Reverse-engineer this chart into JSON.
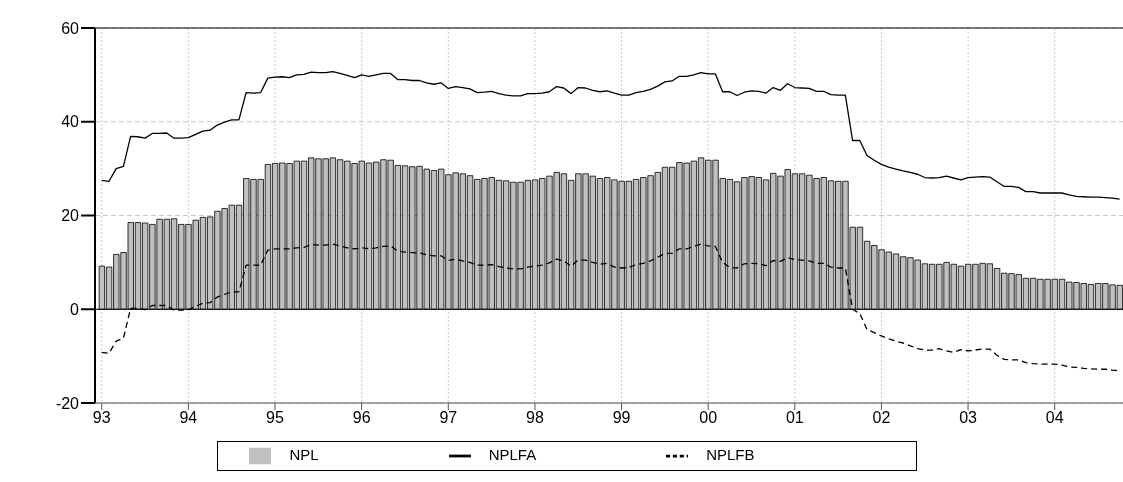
{
  "chart_data": {
    "type": "bar",
    "x": [
      "1993-01",
      "1993-02",
      "1993-03",
      "1993-04",
      "1993-05",
      "1993-06",
      "1993-07",
      "1993-08",
      "1993-09",
      "1993-10",
      "1993-11",
      "1993-12",
      "1994-01",
      "1994-02",
      "1994-03",
      "1994-04",
      "1994-05",
      "1994-06",
      "1994-07",
      "1994-08",
      "1994-09",
      "1994-10",
      "1994-11",
      "1994-12",
      "1995-01",
      "1995-02",
      "1995-03",
      "1995-04",
      "1995-05",
      "1995-06",
      "1995-07",
      "1995-08",
      "1995-09",
      "1995-10",
      "1995-11",
      "1995-12",
      "1996-01",
      "1996-02",
      "1996-03",
      "1996-04",
      "1996-05",
      "1996-06",
      "1996-07",
      "1996-08",
      "1996-09",
      "1996-10",
      "1996-11",
      "1996-12",
      "1997-01",
      "1997-02",
      "1997-03",
      "1997-04",
      "1997-05",
      "1997-06",
      "1997-07",
      "1997-08",
      "1997-09",
      "1997-10",
      "1997-11",
      "1997-12",
      "1998-01",
      "1998-02",
      "1998-03",
      "1998-04",
      "1998-05",
      "1998-06",
      "1998-07",
      "1998-08",
      "1998-09",
      "1998-10",
      "1998-11",
      "1998-12",
      "1999-01",
      "1999-02",
      "1999-03",
      "1999-04",
      "1999-05",
      "1999-06",
      "1999-07",
      "1999-08",
      "1999-09",
      "1999-10",
      "1999-11",
      "1999-12",
      "2000-01",
      "2000-02",
      "2000-03",
      "2000-04",
      "2000-05",
      "2000-06",
      "2000-07",
      "2000-08",
      "2000-09",
      "2000-10",
      "2000-11",
      "2000-12",
      "2001-01",
      "2001-02",
      "2001-03",
      "2001-04",
      "2001-05",
      "2001-06",
      "2001-07",
      "2001-08",
      "2001-09",
      "2001-10",
      "2001-11",
      "2001-12",
      "2002-01",
      "2002-02",
      "2002-03",
      "2002-04",
      "2002-05",
      "2002-06",
      "2002-07",
      "2002-08",
      "2002-09",
      "2002-10",
      "2002-11",
      "2002-12",
      "2003-01",
      "2003-02",
      "2003-03",
      "2003-04",
      "2003-05",
      "2003-06",
      "2003-07",
      "2003-08",
      "2003-09",
      "2003-10",
      "2003-11",
      "2003-12",
      "2004-01",
      "2004-02",
      "2004-03",
      "2004-04",
      "2004-05",
      "2004-06",
      "2004-07",
      "2004-08",
      "2004-09",
      "2004-10"
    ],
    "series": [
      {
        "name": "NPL",
        "color": "#c0c0c0",
        "values": [
          9.2,
          9.0,
          11.7,
          12.1,
          18.5,
          18.5,
          18.4,
          18.1,
          19.2,
          19.2,
          19.3,
          18.1,
          18.1,
          19.0,
          19.6,
          19.7,
          20.9,
          21.5,
          22.2,
          22.2,
          27.9,
          27.7,
          27.7,
          30.9,
          31.1,
          31.2,
          31.1,
          31.6,
          31.6,
          32.3,
          32.1,
          32.1,
          32.3,
          31.9,
          31.6,
          31.1,
          31.6,
          31.2,
          31.4,
          31.9,
          31.8,
          30.7,
          30.6,
          30.4,
          30.5,
          29.9,
          29.6,
          29.9,
          28.7,
          29.1,
          28.9,
          28.5,
          27.7,
          27.9,
          28.1,
          27.5,
          27.4,
          27.1,
          27.1,
          27.5,
          27.6,
          27.9,
          28.4,
          29.2,
          28.9,
          27.5,
          28.9,
          28.9,
          28.4,
          27.9,
          28.1,
          27.6,
          27.3,
          27.3,
          27.7,
          28.1,
          28.5,
          29.2,
          30.3,
          30.3,
          31.3,
          31.2,
          31.6,
          32.3,
          31.8,
          31.8,
          27.9,
          27.7,
          27.2,
          28.1,
          28.3,
          28.1,
          27.6,
          29.0,
          28.4,
          29.8,
          28.9,
          28.9,
          28.6,
          27.9,
          28.1,
          27.4,
          27.3,
          27.3,
          17.5,
          17.5,
          14.5,
          13.6,
          12.7,
          12.2,
          11.8,
          11.2,
          11.0,
          10.5,
          9.7,
          9.6,
          9.6,
          10.0,
          9.6,
          9.2,
          9.6,
          9.6,
          9.8,
          9.7,
          8.7,
          7.7,
          7.6,
          7.4,
          6.6,
          6.6,
          6.4,
          6.4,
          6.4,
          6.4,
          5.8,
          5.7,
          5.5,
          5.3,
          5.5,
          5.5,
          5.2,
          5.1
        ]
      },
      {
        "name": "NPLFA",
        "type": "line",
        "color": "#000000",
        "line_style": "solid",
        "values": [
          27.5,
          27.3,
          30.0,
          30.5,
          36.9,
          36.8,
          36.5,
          37.5,
          37.5,
          37.6,
          36.5,
          36.5,
          36.6,
          37.3,
          38.0,
          38.2,
          39.3,
          39.9,
          40.4,
          40.4,
          46.2,
          46.1,
          46.2,
          49.3,
          49.5,
          49.6,
          49.4,
          50.0,
          50.1,
          50.6,
          50.5,
          50.5,
          50.7,
          50.3,
          49.9,
          49.4,
          50.0,
          49.7,
          50.0,
          50.3,
          50.3,
          49.0,
          49.0,
          48.8,
          48.8,
          48.3,
          48.0,
          48.3,
          47.1,
          47.5,
          47.3,
          47.0,
          46.2,
          46.3,
          46.5,
          46.0,
          45.7,
          45.5,
          45.5,
          46.0,
          46.0,
          46.1,
          46.4,
          47.5,
          47.2,
          46.0,
          47.3,
          47.2,
          46.7,
          46.4,
          46.6,
          46.1,
          45.7,
          45.7,
          46.2,
          46.5,
          46.9,
          47.6,
          48.5,
          48.7,
          49.7,
          49.7,
          50.0,
          50.5,
          50.2,
          50.2,
          46.4,
          46.4,
          45.6,
          46.3,
          46.6,
          46.5,
          46.1,
          47.3,
          46.7,
          48.1,
          47.3,
          47.2,
          47.1,
          46.5,
          46.5,
          45.8,
          45.7,
          45.7,
          36.0,
          36.0,
          32.8,
          31.8,
          30.9,
          30.3,
          29.9,
          29.5,
          29.2,
          28.8,
          28.1,
          28.0,
          28.1,
          28.4,
          28.0,
          27.6,
          28.1,
          28.2,
          28.3,
          28.2,
          27.2,
          26.2,
          26.2,
          26.0,
          25.1,
          25.1,
          24.8,
          24.8,
          24.8,
          24.8,
          24.4,
          24.1,
          24.0,
          23.9,
          23.9,
          23.8,
          23.7,
          23.5
        ]
      },
      {
        "name": "NPLFB",
        "type": "line",
        "color": "#000000",
        "line_style": "dashed",
        "values": [
          -9.2,
          -9.4,
          -6.8,
          -6.2,
          0.2,
          0.2,
          -0.1,
          0.8,
          0.8,
          0.8,
          -0.2,
          -0.2,
          -0.1,
          0.6,
          1.3,
          1.4,
          2.6,
          3.2,
          3.7,
          3.7,
          9.4,
          9.4,
          9.4,
          12.6,
          12.9,
          12.9,
          12.9,
          13.1,
          13.2,
          13.8,
          13.7,
          13.7,
          13.9,
          13.5,
          13.1,
          12.9,
          13.1,
          12.9,
          13.1,
          13.4,
          13.5,
          12.4,
          12.2,
          12.1,
          12.0,
          11.6,
          11.4,
          11.4,
          10.4,
          10.7,
          10.3,
          10.0,
          9.4,
          9.4,
          9.5,
          9.1,
          8.8,
          8.6,
          8.6,
          9.0,
          9.2,
          9.4,
          9.9,
          10.7,
          10.3,
          9.2,
          10.5,
          10.5,
          10.0,
          9.6,
          9.8,
          9.0,
          8.8,
          8.9,
          9.5,
          9.8,
          10.3,
          11.1,
          11.9,
          11.9,
          12.9,
          12.9,
          13.4,
          13.9,
          13.5,
          13.4,
          10.0,
          8.9,
          8.8,
          9.7,
          9.8,
          9.7,
          9.3,
          10.4,
          10.2,
          11.0,
          10.6,
          10.5,
          10.3,
          9.8,
          9.8,
          9.0,
          8.8,
          8.8,
          0.0,
          -0.9,
          -4.3,
          -5.0,
          -5.7,
          -6.3,
          -6.8,
          -7.2,
          -7.8,
          -8.4,
          -8.7,
          -8.7,
          -8.4,
          -8.9,
          -9.2,
          -8.6,
          -8.9,
          -8.7,
          -8.5,
          -8.5,
          -9.8,
          -10.7,
          -10.8,
          -10.8,
          -11.4,
          -11.6,
          -11.7,
          -11.7,
          -11.7,
          -11.9,
          -12.3,
          -12.4,
          -12.6,
          -12.7,
          -12.8,
          -12.8,
          -13.0,
          -13.1
        ]
      }
    ],
    "xlim": [
      "1992-12-03",
      "2004-10-15"
    ],
    "xticks": [
      {
        "value": "1993-01",
        "label": "93"
      },
      {
        "value": "1994-01",
        "label": "94"
      },
      {
        "value": "1995-01",
        "label": "95"
      },
      {
        "value": "1996-01",
        "label": "96"
      },
      {
        "value": "1997-01",
        "label": "97"
      },
      {
        "value": "1998-01",
        "label": "98"
      },
      {
        "value": "1999-01",
        "label": "99"
      },
      {
        "value": "2000-01",
        "label": "00"
      },
      {
        "value": "2001-01",
        "label": "01"
      },
      {
        "value": "2002-01",
        "label": "02"
      },
      {
        "value": "2003-01",
        "label": "03"
      },
      {
        "value": "2004-01",
        "label": "04"
      }
    ],
    "ylim": [
      -20,
      60
    ],
    "yticks": [
      -20,
      0,
      20,
      40,
      60
    ],
    "ref_lines": [
      {
        "axis": "y",
        "value": 0,
        "color": "#000000"
      }
    ],
    "grid": true,
    "legend": "bottom"
  }
}
